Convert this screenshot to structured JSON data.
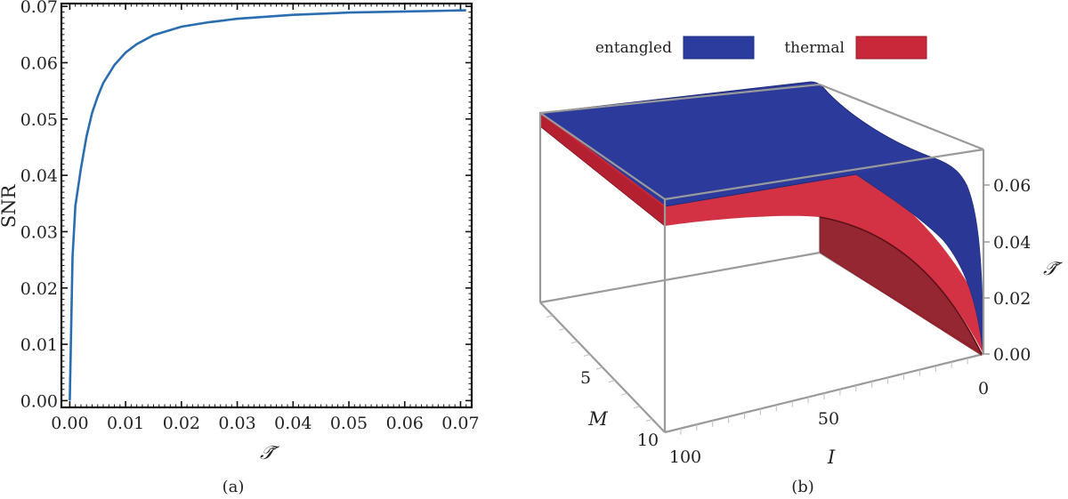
{
  "chart_data": [
    {
      "type": "line",
      "panel_label": "(a)",
      "xlabel": "𝒯̃",
      "ylabel": "SNR",
      "xlim": [
        -0.0015,
        0.072
      ],
      "ylim": [
        -0.0012,
        0.0705
      ],
      "xticks": [
        0.0,
        0.01,
        0.02,
        0.03,
        0.04,
        0.05,
        0.06,
        0.07
      ],
      "xtick_labels": [
        "0.00",
        "0.01",
        "0.02",
        "0.03",
        "0.04",
        "0.05",
        "0.06",
        "0.07"
      ],
      "yticks": [
        0.0,
        0.01,
        0.02,
        0.03,
        0.04,
        0.05,
        0.06,
        0.07
      ],
      "ytick_labels": [
        "0.00",
        "0.01",
        "0.02",
        "0.03",
        "0.04",
        "0.05",
        "0.06",
        "0.07"
      ],
      "grid": false,
      "color": "#2a6db0",
      "series": [
        {
          "x": [
            0.0,
            0.0005,
            0.001,
            0.002,
            0.003,
            0.004,
            0.005,
            0.006,
            0.008,
            0.01,
            0.012,
            0.015,
            0.02,
            0.025,
            0.03,
            0.04,
            0.05,
            0.06,
            0.071
          ],
          "y": [
            0.0,
            0.0255,
            0.0346,
            0.0413,
            0.0469,
            0.0511,
            0.054,
            0.0564,
            0.0596,
            0.0618,
            0.0633,
            0.0649,
            0.0664,
            0.0672,
            0.0678,
            0.0685,
            0.0689,
            0.0691,
            0.0693
          ]
        }
      ]
    },
    {
      "type": "surface",
      "panel_label": "(b)",
      "legend": [
        "entangled",
        "thermal"
      ],
      "legend_position": "top",
      "colors": {
        "entangled": "#2b3c9e",
        "thermal": "#c8283a"
      },
      "zlabel": "𝒯̃",
      "x_axis_label": "I",
      "y_axis_label": "M",
      "z_tick_labels": [
        "0.00",
        "0.02",
        "0.04",
        "0.06"
      ],
      "x_tick_labels": [
        "0",
        "50",
        "100"
      ],
      "y_tick_labels": [
        "5",
        "10"
      ]
    }
  ]
}
